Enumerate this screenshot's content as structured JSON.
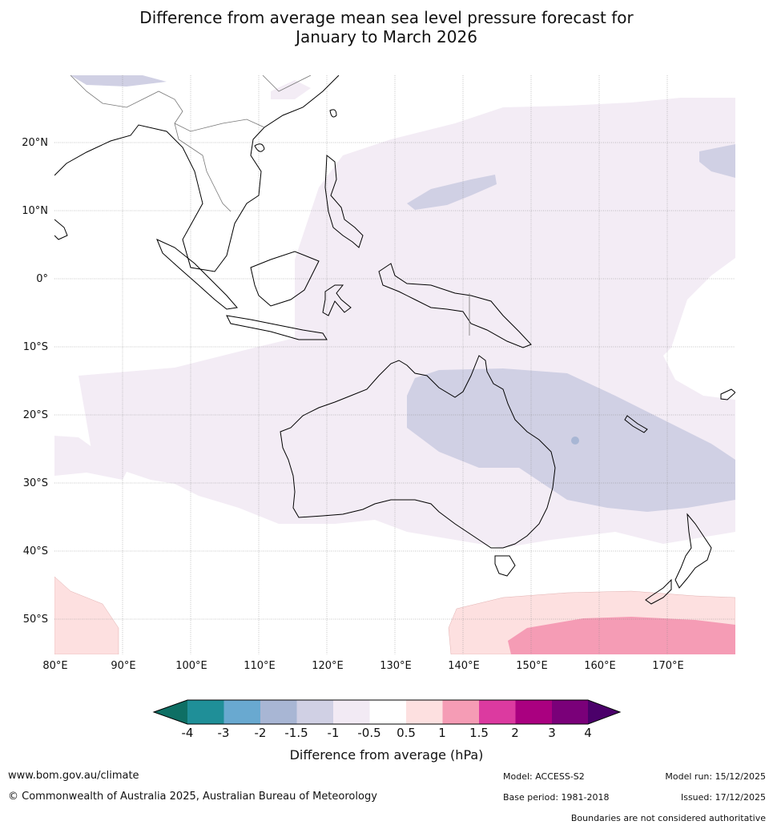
{
  "title_line1": "Difference from average mean sea level pressure forecast for",
  "title_line2": "January to March 2026",
  "map": {
    "lat_labels": [
      "20°N",
      "10°N",
      "0°",
      "10°S",
      "20°S",
      "30°S",
      "40°S",
      "50°S"
    ],
    "lon_labels": [
      "80°E",
      "90°E",
      "100°E",
      "110°E",
      "120°E",
      "130°E",
      "140°E",
      "150°E",
      "160°E",
      "170°E"
    ],
    "extent": {
      "lon_min": 80,
      "lon_max": 180,
      "lat_min": -55,
      "lat_max": 30
    }
  },
  "colorbar": {
    "ticks": [
      "-4",
      "-3",
      "-2",
      "-1.5",
      "-1",
      "-0.5",
      "0.5",
      "1",
      "1.5",
      "2",
      "3",
      "4"
    ],
    "colors": [
      "#0e6f64",
      "#1f8f98",
      "#69a9d0",
      "#a8b6d4",
      "#d0d0e4",
      "#f2eaf4",
      "#ffffff",
      "#fde0e0",
      "#f59cb5",
      "#dc3aa0",
      "#aa0080",
      "#7a0079",
      "#4b006a"
    ],
    "label": "Difference from average (hPa)"
  },
  "footer": {
    "url": "www.bom.gov.au/climate",
    "copyright": "© Commonwealth of Australia 2025, Australian Bureau of Meteorology",
    "model": "Model: ACCESS-S2",
    "base_period": "Base period: 1981-2018",
    "model_run": "Model run: 15/12/2025",
    "issued": "Issued: 17/12/2025",
    "boundaries": "Boundaries are not considered authoritative"
  }
}
